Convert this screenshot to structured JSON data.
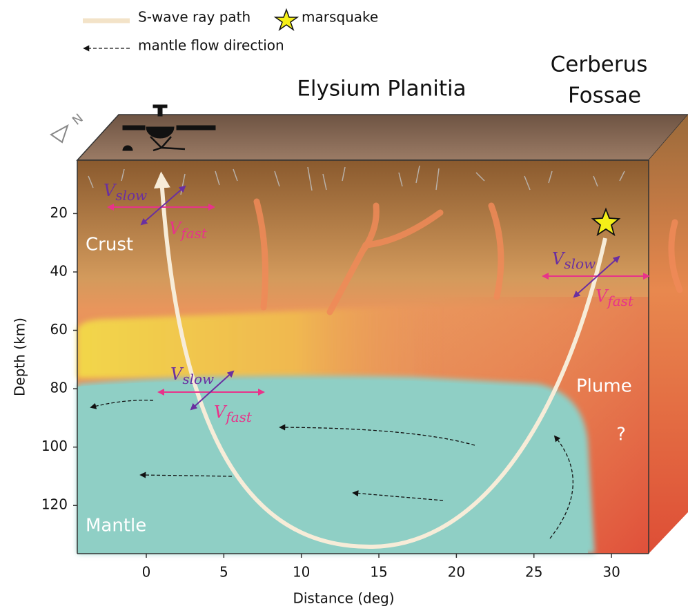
{
  "legend": {
    "ray": "S-wave ray path",
    "quake": "marsquake",
    "flow": "mantle flow direction"
  },
  "title": "Elysium Planitia",
  "cerberus": [
    "Cerberus",
    "Fossae"
  ],
  "north": "N",
  "layers": {
    "crust": "Crust",
    "plume": "Plume",
    "unknown": "?",
    "mantle": "Mantle"
  },
  "anisotropy": [
    {
      "slow": {
        "symbol": "V",
        "subscript": "slow"
      },
      "fast": {
        "symbol": "V",
        "subscript": "fast"
      }
    },
    {
      "slow": {
        "symbol": "V",
        "subscript": "slow"
      },
      "fast": {
        "symbol": "V",
        "subscript": "fast"
      }
    },
    {
      "slow": {
        "symbol": "V",
        "subscript": "slow"
      },
      "fast": {
        "symbol": "V",
        "subscript": "fast"
      }
    }
  ],
  "axes": {
    "x": {
      "label": "Distance (deg)",
      "lim": [
        -4.45,
        32.4
      ],
      "ticks": [
        0,
        5,
        10,
        15,
        20,
        25,
        30
      ]
    },
    "y": {
      "label": "Depth (km)",
      "lim": [
        1.7,
        136.5
      ],
      "ticks": [
        20,
        40,
        60,
        80,
        100,
        120
      ]
    }
  }
}
